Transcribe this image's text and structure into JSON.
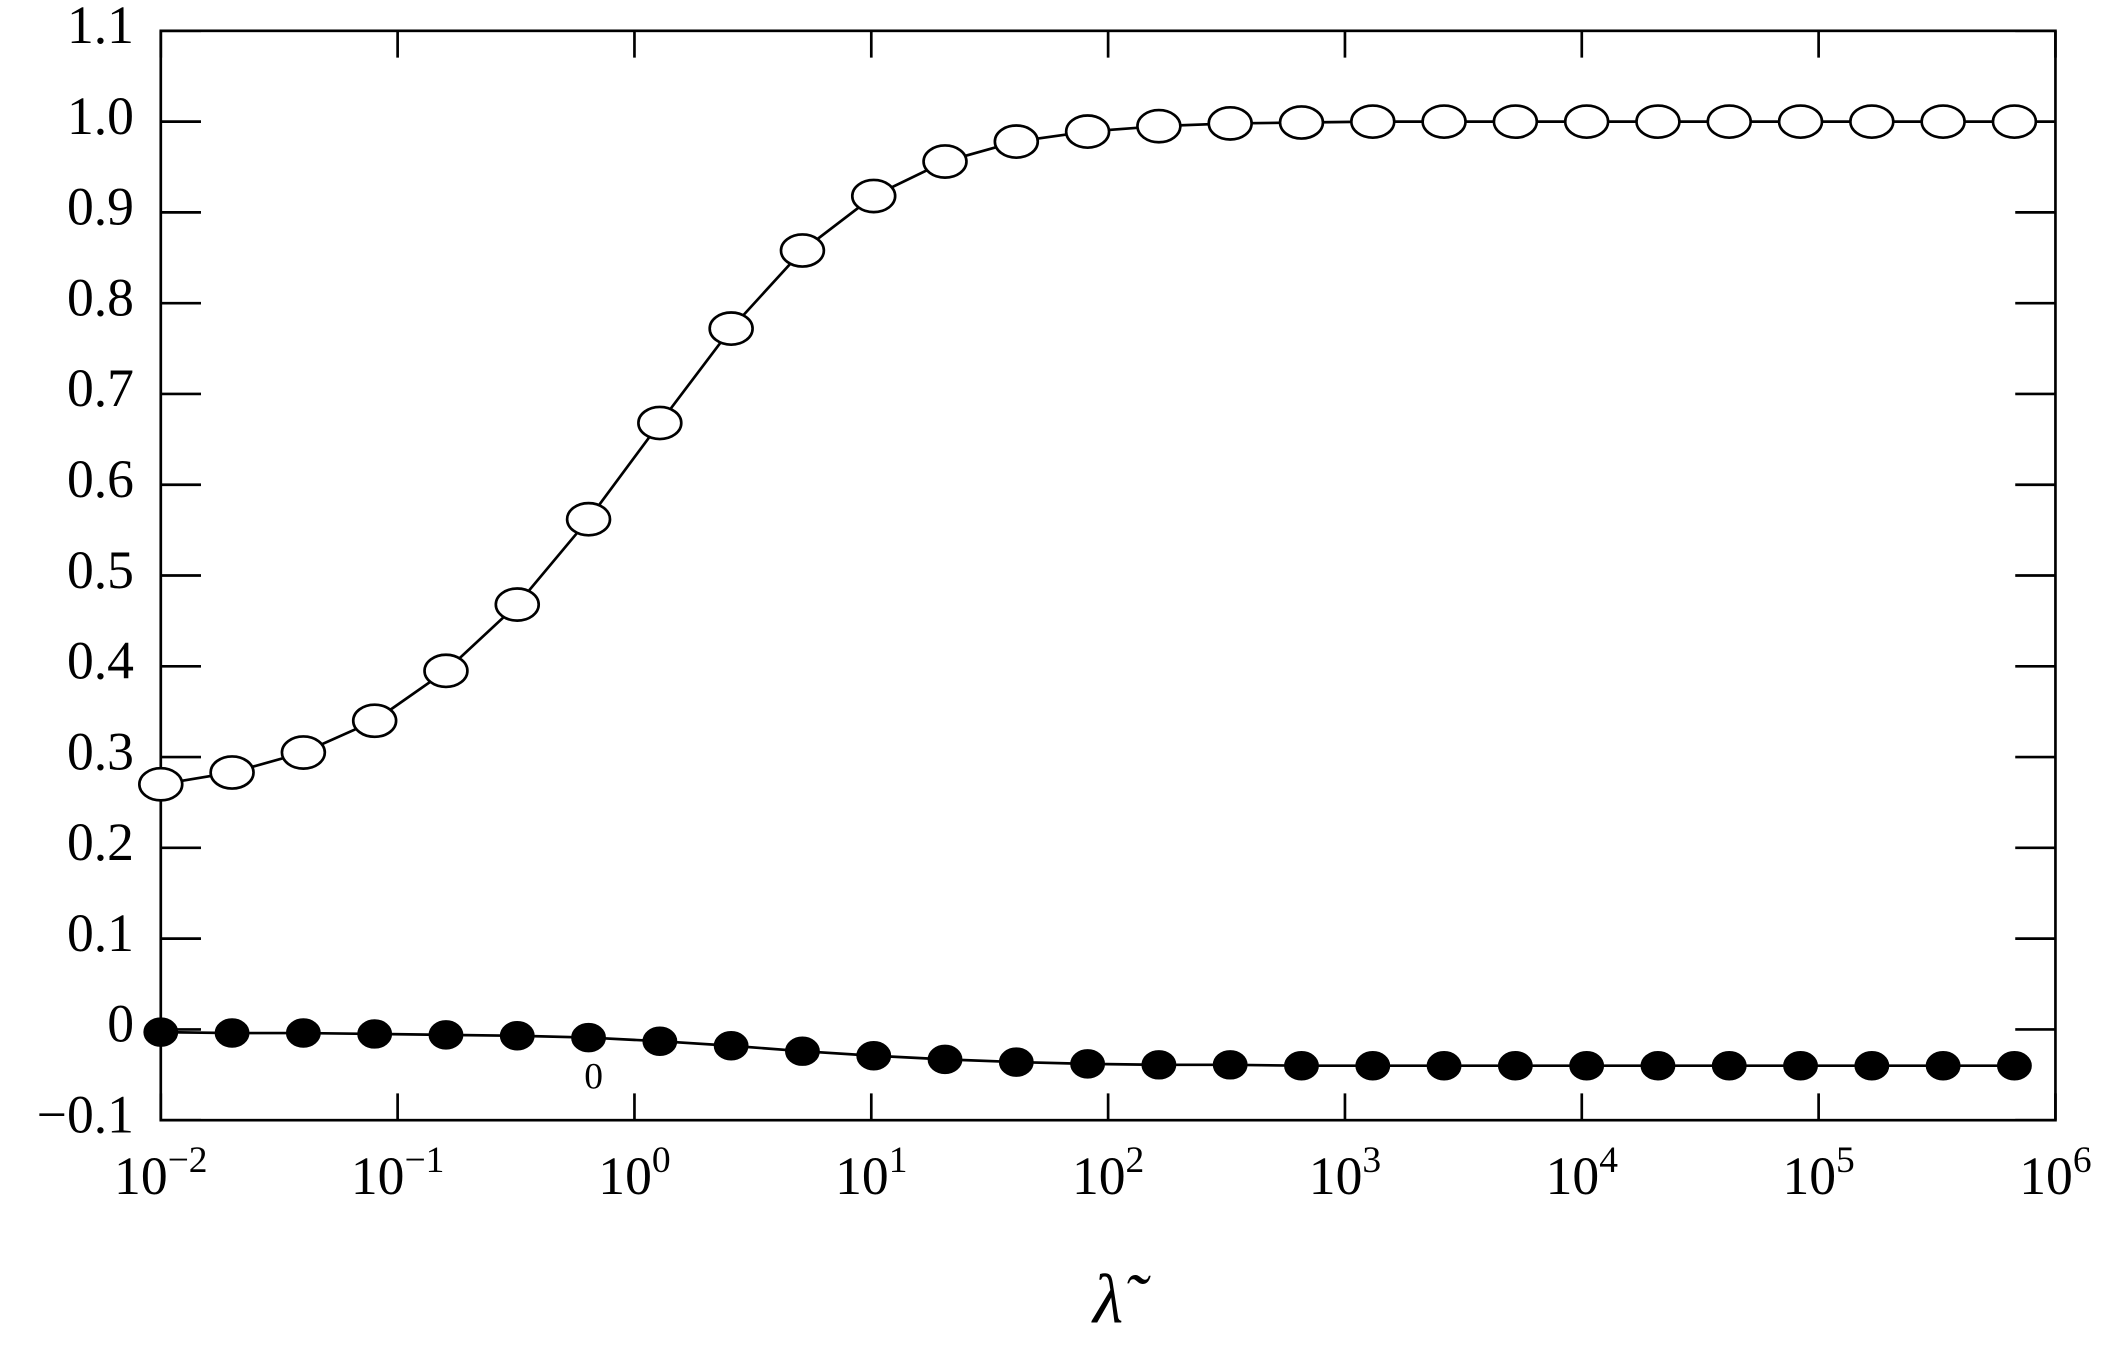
{
  "chart_data": {
    "type": "line",
    "xlabel": "λ̃",
    "annotation": "0",
    "log_x": true,
    "x": [
      0.01,
      0.02,
      0.04,
      0.08,
      0.16,
      0.32,
      0.64,
      1.28,
      2.56,
      5.12,
      10.24,
      20.48,
      40.96,
      81.92,
      163.84,
      327.68,
      655.36,
      1310.72,
      2621.44,
      5242.88,
      10485.76,
      20971.52,
      41943.04,
      83886.08,
      167772.16,
      335544.32,
      671088.64
    ],
    "series": [
      {
        "name": "open",
        "marker": "open",
        "color": "#000000",
        "values": [
          0.27,
          0.283,
          0.305,
          0.34,
          0.395,
          0.468,
          0.562,
          0.668,
          0.772,
          0.858,
          0.918,
          0.956,
          0.978,
          0.989,
          0.995,
          0.998,
          0.999,
          1.0,
          1.0,
          1.0,
          1.0,
          1.0,
          1.0,
          1.0,
          1.0,
          1.0,
          1.0
        ]
      },
      {
        "name": "filled",
        "marker": "filled",
        "color": "#000000",
        "values": [
          -0.003,
          -0.004,
          -0.004,
          -0.005,
          -0.006,
          -0.007,
          -0.009,
          -0.013,
          -0.018,
          -0.024,
          -0.029,
          -0.033,
          -0.036,
          -0.038,
          -0.039,
          -0.039,
          -0.04,
          -0.04,
          -0.04,
          -0.04,
          -0.04,
          -0.04,
          -0.04,
          -0.04,
          -0.04,
          -0.04,
          -0.04
        ]
      }
    ],
    "xlim": [
      0.01,
      1000000
    ],
    "xticks": [
      {
        "value": 0.01,
        "label": "10",
        "exponent": "−2"
      },
      {
        "value": 0.1,
        "label": "10",
        "exponent": "−1"
      },
      {
        "value": 1,
        "label": "10",
        "exponent": "0"
      },
      {
        "value": 10,
        "label": "10",
        "exponent": "1"
      },
      {
        "value": 100,
        "label": "10",
        "exponent": "2"
      },
      {
        "value": 1000,
        "label": "10",
        "exponent": "3"
      },
      {
        "value": 10000,
        "label": "10",
        "exponent": "4"
      },
      {
        "value": 100000,
        "label": "10",
        "exponent": "5"
      },
      {
        "value": 1000000,
        "label": "10",
        "exponent": "6"
      }
    ],
    "ylim": [
      -0.1,
      1.1
    ],
    "yticks": [
      1.1,
      {
        "value": 1.0,
        "label": "1.0"
      },
      0.9,
      0.8,
      0.7,
      0.6,
      0.5,
      0.4,
      0.3,
      0.2,
      0.1,
      0,
      {
        "value": -0.1,
        "label": "−0.1"
      }
    ]
  }
}
